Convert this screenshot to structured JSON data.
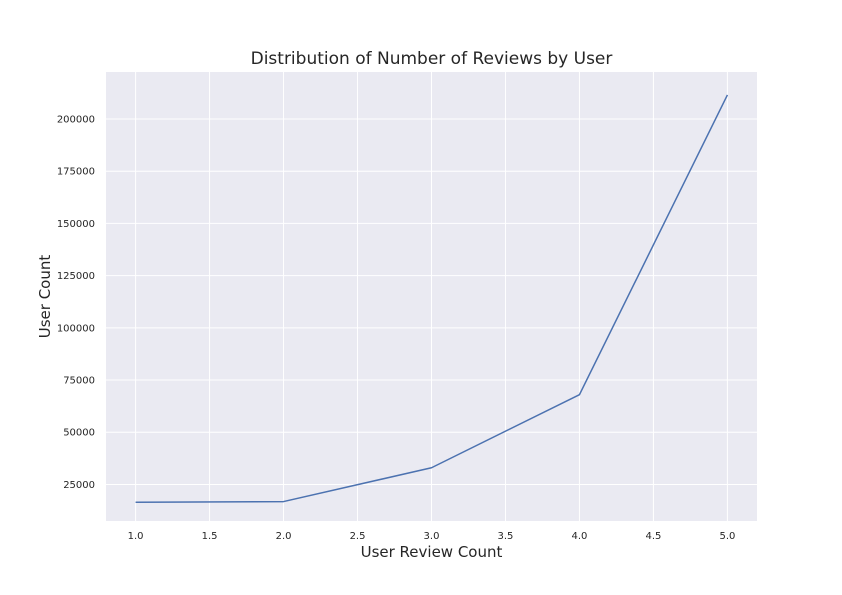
{
  "chart_data": {
    "type": "line",
    "title": "Distribution of Number of Reviews by User",
    "xlabel": "User Review Count",
    "ylabel": "User Count",
    "x": [
      1.0,
      2.0,
      3.0,
      4.0,
      5.0
    ],
    "series": [
      {
        "values": [
          16500,
          16800,
          33000,
          68000,
          211500
        ]
      }
    ],
    "xlim": [
      0.8,
      5.2
    ],
    "ylim": [
      7500,
      222500
    ],
    "xticks": [
      "1.0",
      "1.5",
      "2.0",
      "2.5",
      "3.0",
      "3.5",
      "4.0",
      "4.5",
      "5.0"
    ],
    "yticks": [
      "25000",
      "50000",
      "75000",
      "100000",
      "125000",
      "150000",
      "175000",
      "200000"
    ],
    "grid": true,
    "background_color": "#eaeaf2",
    "line_color": "#4c72b0"
  }
}
